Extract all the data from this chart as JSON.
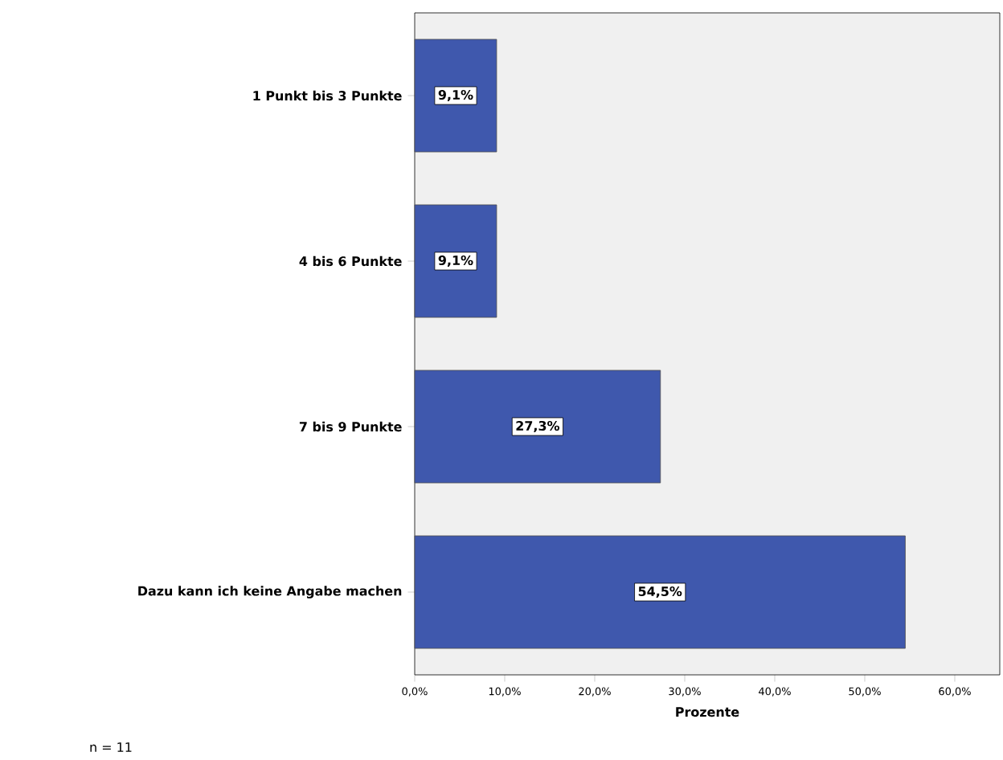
{
  "chart_data": {
    "type": "bar",
    "orientation": "horizontal",
    "categories": [
      "1 Punkt bis 3 Punkte",
      "4 bis 6 Punkte",
      "7 bis 9 Punkte",
      "Dazu kann ich keine Angabe machen"
    ],
    "values": [
      9.1,
      9.1,
      27.3,
      54.5
    ],
    "value_labels": [
      "9,1%",
      "9,1%",
      "27,3%",
      "54,5%"
    ],
    "color": "#3f58ad",
    "xlabel": "Prozente",
    "xlim": [
      0,
      65
    ],
    "xticks": [
      {
        "value": 0,
        "label": "0,0%"
      },
      {
        "value": 10,
        "label": "10,0%"
      },
      {
        "value": 20,
        "label": "20,0%"
      },
      {
        "value": 30,
        "label": "30,0%"
      },
      {
        "value": 40,
        "label": "40,0%"
      },
      {
        "value": 50,
        "label": "50,0%"
      },
      {
        "value": 60,
        "label": "60,0%"
      }
    ],
    "annotations": [
      "n = 11"
    ]
  }
}
